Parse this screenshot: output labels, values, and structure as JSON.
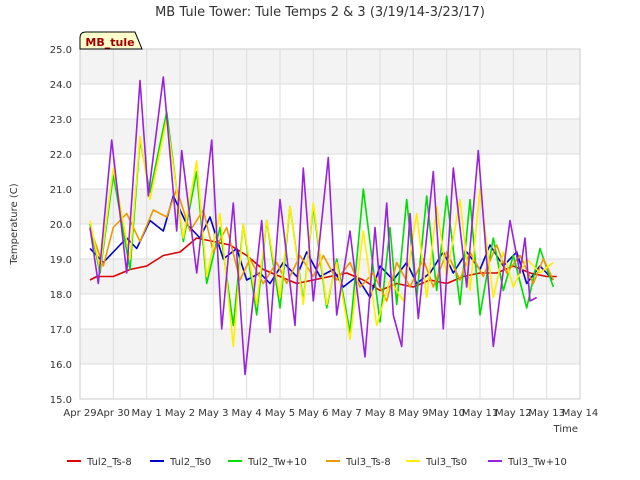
{
  "chart_data": {
    "type": "line",
    "title": "MB Tule Tower: Tule Temps 2 & 3 (3/19/14-3/23/17)",
    "station_label": "MB_tule",
    "xlabel": "Time",
    "ylabel": "Temperature (C)",
    "ylim": [
      15.0,
      25.0
    ],
    "yticks": [
      "15.0",
      "16.0",
      "17.0",
      "18.0",
      "19.0",
      "20.0",
      "21.0",
      "22.0",
      "23.0",
      "24.0",
      "25.0"
    ],
    "xlim": [
      0,
      15
    ],
    "xticks": [
      "Apr 29",
      "Apr 30",
      "May 1",
      "May 2",
      "May 3",
      "May 4",
      "May 5",
      "May 6",
      "May 7",
      "May 8",
      "May 9",
      "May 10",
      "May 11",
      "May 12",
      "May 13",
      "May 14"
    ],
    "grid": true,
    "legend_position": "bottom",
    "series": [
      {
        "name": "Tul2_Ts-8",
        "color": "#dd0000",
        "x": [
          0.3,
          0.5,
          1,
          1.5,
          2,
          2.5,
          3,
          3.5,
          4,
          4.5,
          5,
          5.5,
          6,
          6.5,
          7,
          7.5,
          8,
          8.5,
          9,
          9.5,
          10,
          10.5,
          11,
          11.5,
          12,
          12.5,
          13,
          13.5,
          14,
          14.3
        ],
        "values": [
          18.4,
          18.5,
          18.5,
          18.7,
          18.8,
          19.1,
          19.2,
          19.6,
          19.5,
          19.4,
          19.1,
          18.7,
          18.5,
          18.3,
          18.4,
          18.5,
          18.6,
          18.4,
          18.1,
          18.3,
          18.2,
          18.4,
          18.3,
          18.5,
          18.6,
          18.6,
          18.8,
          18.6,
          18.5,
          18.5
        ]
      },
      {
        "name": "Tul2_Ts0",
        "color": "#0000cc",
        "x": [
          0.3,
          0.7,
          1.0,
          1.4,
          1.7,
          2.1,
          2.5,
          2.8,
          3.2,
          3.6,
          3.9,
          4.3,
          4.7,
          5.0,
          5.4,
          5.7,
          6.1,
          6.5,
          6.8,
          7.2,
          7.6,
          7.9,
          8.3,
          8.7,
          9.0,
          9.4,
          9.8,
          10.1,
          10.5,
          10.9,
          11.2,
          11.6,
          12.0,
          12.3,
          12.7,
          13.1,
          13.4,
          13.8,
          14.2
        ],
        "values": [
          19.3,
          18.9,
          19.2,
          19.6,
          19.3,
          20.1,
          19.8,
          20.8,
          20.0,
          19.6,
          20.2,
          19.0,
          19.3,
          18.4,
          18.6,
          18.3,
          18.9,
          18.5,
          19.2,
          18.5,
          18.7,
          18.2,
          18.5,
          17.9,
          18.8,
          18.4,
          18.9,
          18.3,
          18.6,
          19.2,
          18.6,
          19.2,
          18.7,
          19.4,
          18.8,
          19.2,
          18.3,
          18.8,
          18.4
        ]
      },
      {
        "name": "Tul2_Tw+10",
        "color": "#00dd00",
        "x": [
          0.3,
          0.6,
          1.0,
          1.5,
          1.8,
          2.1,
          2.6,
          3.1,
          3.5,
          3.8,
          4.2,
          4.6,
          4.9,
          5.3,
          5.6,
          6.0,
          6.3,
          6.7,
          7.0,
          7.4,
          7.7,
          8.1,
          8.5,
          9.0,
          9.3,
          9.5,
          9.8,
          10.1,
          10.4,
          10.7,
          11.0,
          11.4,
          11.7,
          12.0,
          12.4,
          12.7,
          13.0,
          13.4,
          13.8,
          14.2
        ],
        "values": [
          20.0,
          18.6,
          21.4,
          18.7,
          22.4,
          20.9,
          23.2,
          19.5,
          21.5,
          18.3,
          19.9,
          17.1,
          20.0,
          17.4,
          20.1,
          17.6,
          20.5,
          17.8,
          20.5,
          17.6,
          19.0,
          16.9,
          21.0,
          17.2,
          19.9,
          17.7,
          20.7,
          17.9,
          20.8,
          18.1,
          20.8,
          17.7,
          20.7,
          17.4,
          19.6,
          18.1,
          19.1,
          17.6,
          19.3,
          18.2
        ]
      },
      {
        "name": "Tul3_Ts-8",
        "color": "#ee9900",
        "x": [
          0.3,
          0.7,
          1.0,
          1.4,
          1.8,
          2.2,
          2.6,
          2.9,
          3.3,
          3.7,
          4.0,
          4.4,
          4.8,
          5.1,
          5.5,
          5.9,
          6.2,
          6.6,
          7.0,
          7.3,
          7.7,
          8.1,
          8.4,
          8.8,
          9.2,
          9.5,
          9.9,
          10.3,
          10.6,
          11.0,
          11.4,
          11.7,
          12.1,
          12.5,
          12.8,
          13.2,
          13.6,
          13.9,
          14.2
        ],
        "values": [
          19.9,
          18.8,
          19.9,
          20.3,
          19.5,
          20.4,
          20.2,
          21.0,
          19.8,
          20.4,
          19.2,
          19.9,
          18.4,
          19.0,
          18.3,
          18.9,
          18.3,
          19.1,
          18.5,
          19.1,
          18.4,
          18.9,
          18.2,
          18.6,
          17.8,
          18.9,
          18.2,
          19.0,
          18.2,
          19.2,
          18.4,
          19.2,
          18.5,
          19.4,
          18.6,
          19.1,
          18.3,
          19.0,
          18.4
        ]
      },
      {
        "name": "Tul3_Ts0",
        "color": "#ffee00",
        "x": [
          0.3,
          0.6,
          1.0,
          1.5,
          1.8,
          2.1,
          2.6,
          3.1,
          3.5,
          3.8,
          4.2,
          4.6,
          4.9,
          5.3,
          5.6,
          6.0,
          6.3,
          6.7,
          7.0,
          7.4,
          7.7,
          8.1,
          8.5,
          8.9,
          9.3,
          9.7,
          10.1,
          10.4,
          10.7,
          11.0,
          11.4,
          11.7,
          12.0,
          12.4,
          12.7,
          13.0,
          13.4,
          13.8,
          14.2
        ],
        "values": [
          20.1,
          18.7,
          21.6,
          19.0,
          22.5,
          20.7,
          23.0,
          19.6,
          21.8,
          18.5,
          20.3,
          16.5,
          20.0,
          17.7,
          20.1,
          17.9,
          20.5,
          17.7,
          20.6,
          17.7,
          18.9,
          16.7,
          19.8,
          17.1,
          18.4,
          17.8,
          20.3,
          17.9,
          20.5,
          18.5,
          20.7,
          18.1,
          21.0,
          17.9,
          19.2,
          18.2,
          19.0,
          18.6,
          18.9
        ]
      },
      {
        "name": "Tul3_Tw+10",
        "color": "#9922dd",
        "x": [
          0.3,
          0.55,
          0.95,
          1.4,
          1.8,
          2.05,
          2.5,
          2.9,
          3.05,
          3.5,
          3.95,
          4.25,
          4.6,
          4.95,
          5.45,
          5.7,
          6.0,
          6.45,
          6.7,
          7.0,
          7.45,
          7.7,
          8.1,
          8.55,
          8.85,
          9.0,
          9.2,
          9.4,
          9.65,
          9.9,
          10.15,
          10.6,
          10.9,
          11.2,
          11.6,
          11.95,
          12.1,
          12.4,
          12.9,
          13.2,
          13.35,
          13.5,
          13.7
        ],
        "values": [
          19.9,
          18.3,
          22.4,
          18.6,
          24.1,
          20.8,
          24.2,
          19.8,
          22.1,
          18.6,
          22.4,
          17.0,
          20.6,
          15.7,
          20.1,
          16.9,
          20.7,
          17.1,
          21.6,
          17.8,
          21.9,
          17.4,
          19.8,
          16.2,
          19.9,
          18.2,
          20.6,
          17.4,
          16.5,
          20.3,
          17.3,
          21.5,
          17.0,
          21.6,
          18.2,
          22.1,
          20.2,
          16.5,
          20.1,
          18.6,
          19.6,
          17.8,
          17.9
        ]
      }
    ]
  }
}
